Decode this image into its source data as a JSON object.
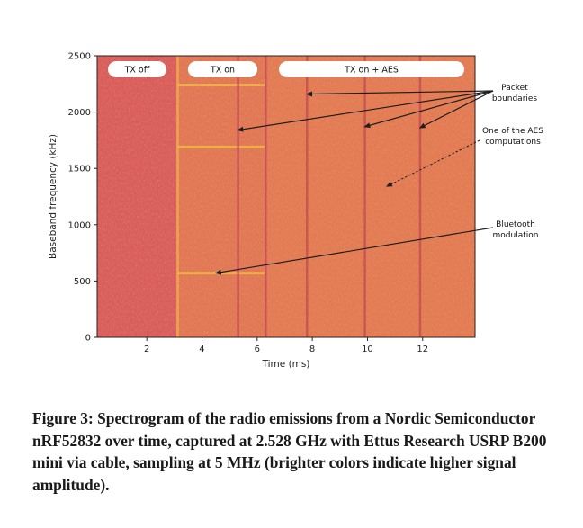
{
  "chart_data": {
    "type": "heatmap",
    "title": "",
    "xlabel": "Time (ms)",
    "ylabel": "Baseband frequency (kHz)",
    "xlim": [
      0.2,
      13.9
    ],
    "ylim": [
      0,
      2500
    ],
    "x_ticks": [
      2,
      4,
      6,
      8,
      10,
      12
    ],
    "y_ticks": [
      0,
      500,
      1000,
      1500,
      2000,
      2500
    ],
    "grid": false,
    "segments": [
      {
        "label": "TX off",
        "start_ms": 0.2,
        "end_ms": 3.1
      },
      {
        "label": "TX on",
        "start_ms": 3.1,
        "end_ms": 6.4
      },
      {
        "label": "TX on + AES",
        "start_ms": 6.4,
        "end_ms": 13.9
      }
    ],
    "packet_boundaries_ms": [
      5.3,
      6.3,
      7.8,
      9.9,
      11.9
    ],
    "horizontal_lines_khz": [
      570,
      1690,
      2240
    ],
    "aes_computation_span_ms": [
      10.2,
      11.2
    ],
    "aes_computation_khz": 1305,
    "colors": {
      "background": "#d85c5a",
      "active": "#e37a52",
      "line": "#f0b24a",
      "pill": "#ffffff"
    },
    "annotations": [
      {
        "text_lines": [
          "Packet",
          "boundaries"
        ],
        "points_to_ms": [
          5.3,
          7.8,
          9.9,
          11.9
        ],
        "points_to_khz": [
          1840,
          2160,
          1870,
          1860
        ],
        "style": "solid"
      },
      {
        "text_lines": [
          "One of the AES",
          "computations"
        ],
        "points_to_ms": [
          10.7
        ],
        "points_to_khz": [
          1340
        ],
        "style": "dashed"
      },
      {
        "text_lines": [
          "Bluetooth",
          "modulation"
        ],
        "points_to_ms": [
          4.5
        ],
        "points_to_khz": [
          570
        ],
        "style": "solid"
      }
    ]
  },
  "caption": "Figure 3: Spectrogram of the radio emissions from a Nordic Semiconductor nRF52832 over time, captured at 2.528 GHz with Ettus Research USRP B200 mini via cable, sampling at 5 MHz (brighter colors indicate higher signal amplitude)."
}
